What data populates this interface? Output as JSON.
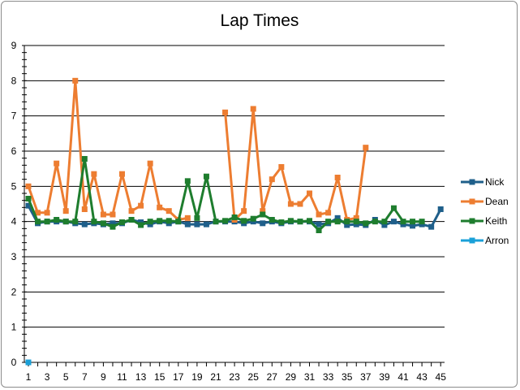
{
  "chart_data": {
    "type": "line",
    "title": "Lap Times",
    "xlabel": "",
    "ylabel": "",
    "ylim": [
      0,
      9
    ],
    "y_ticks": [
      0,
      1,
      2,
      3,
      4,
      5,
      6,
      7,
      8,
      9
    ],
    "x_range": [
      1,
      45
    ],
    "x_tick_labels": [
      1,
      3,
      5,
      7,
      9,
      11,
      13,
      15,
      17,
      19,
      21,
      23,
      25,
      27,
      29,
      31,
      33,
      35,
      37,
      39,
      41,
      43,
      45
    ],
    "grid": "horizontal",
    "legend_position": "right",
    "series": [
      {
        "name": "Nick",
        "color": "#1f5f8a",
        "values": [
          4.45,
          3.95,
          4.0,
          4.0,
          4.0,
          3.95,
          3.92,
          3.95,
          3.92,
          3.95,
          3.95,
          4.05,
          3.98,
          3.92,
          4.0,
          3.95,
          4.0,
          3.92,
          3.92,
          3.92,
          4.0,
          4.0,
          4.0,
          3.95,
          4.0,
          3.95,
          4.0,
          3.95,
          4.0,
          4.0,
          4.0,
          3.92,
          3.95,
          4.1,
          3.9,
          3.92,
          3.9,
          4.05,
          3.9,
          4.0,
          3.92,
          3.88,
          3.92,
          3.85,
          4.35
        ]
      },
      {
        "name": "Dean",
        "color": "#ed7d31",
        "values": [
          5.0,
          4.25,
          4.25,
          5.65,
          4.3,
          8.0,
          4.35,
          5.35,
          4.2,
          4.2,
          5.35,
          4.3,
          4.45,
          5.65,
          4.4,
          4.3,
          4.05,
          4.1,
          null,
          null,
          null,
          7.1,
          4.05,
          4.3,
          7.2,
          4.3,
          5.2,
          5.55,
          4.5,
          4.5,
          4.8,
          4.2,
          4.25,
          5.25,
          4.05,
          4.1,
          6.1
        ]
      },
      {
        "name": "Keith",
        "color": "#1e7d2e",
        "values": [
          4.65,
          4.0,
          4.0,
          4.05,
          4.0,
          4.0,
          5.78,
          4.0,
          3.95,
          3.85,
          3.98,
          4.05,
          3.9,
          4.0,
          4.02,
          4.02,
          4.0,
          5.15,
          4.1,
          5.28,
          4.0,
          4.02,
          4.12,
          4.02,
          4.08,
          4.2,
          4.05,
          3.98,
          4.02,
          4.0,
          4.02,
          3.75,
          4.0,
          4.0,
          4.0,
          4.0,
          3.95,
          4.0,
          4.0,
          4.38,
          4.0,
          4.0,
          4.0
        ]
      },
      {
        "name": "Arron",
        "color": "#1aa0d8",
        "values": [
          0.0
        ]
      }
    ]
  }
}
